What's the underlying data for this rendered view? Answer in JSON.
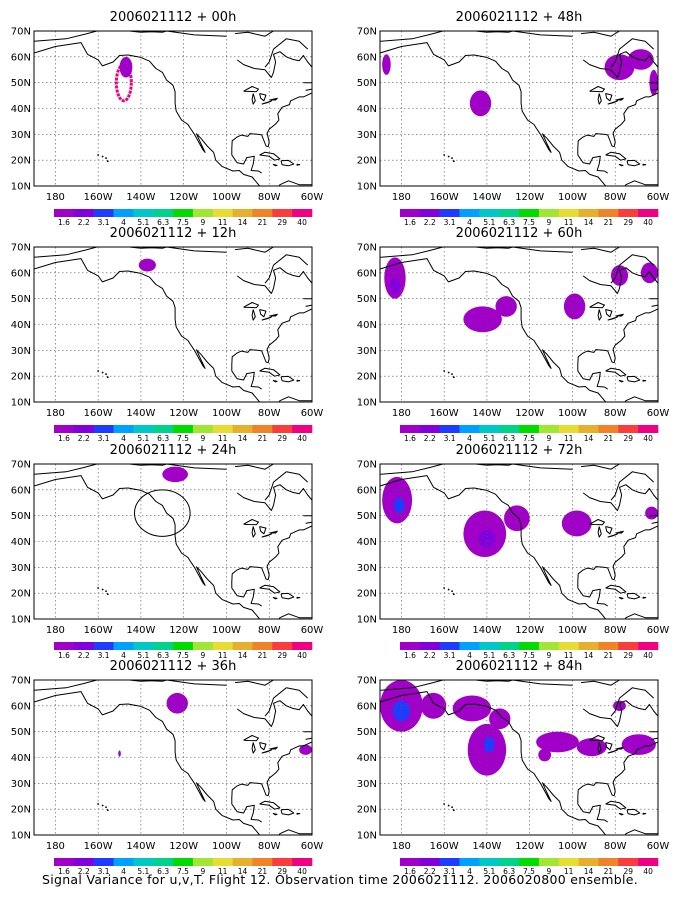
{
  "figure": {
    "caption": "Signal Variance for u,v,T. Flight 12. Observation time 2006021112. 2006020800 ensemble."
  },
  "map": {
    "lat_ticks": [
      "70N",
      "60N",
      "50N",
      "40N",
      "30N",
      "20N",
      "10N"
    ],
    "lon_ticks": [
      "180",
      "160W",
      "140W",
      "120W",
      "100W",
      "80W",
      "60W"
    ],
    "lat_range": [
      10,
      70
    ],
    "lon_range": [
      -190,
      -60
    ],
    "grid": "dotted"
  },
  "colorbar": {
    "labels": [
      "1.6",
      "2.2",
      "3.1",
      "4",
      "5.1",
      "6.3",
      "7.5",
      "9",
      "11",
      "14",
      "21",
      "29",
      "40"
    ],
    "colors": [
      "#a000c8",
      "#8200dc",
      "#1e3cff",
      "#00a0ff",
      "#00c8c8",
      "#00d28c",
      "#00dc00",
      "#a0e632",
      "#e6dc32",
      "#e6af2d",
      "#f08228",
      "#fa3c3c",
      "#f00082"
    ]
  },
  "chart_data": [
    {
      "type": "heatmap",
      "title": "2006021112 + 00h",
      "field": "signal variance",
      "features": [
        {
          "kind": "contour_ring",
          "lon": -148,
          "lat": 50,
          "rx": 3.5,
          "ry": 7,
          "color": "#f00082"
        },
        {
          "kind": "blob",
          "lon": -147,
          "lat": 56,
          "rx": 3,
          "ry": 4,
          "color": "#a000c8"
        }
      ]
    },
    {
      "type": "heatmap",
      "title": "2006021112 + 48h",
      "field": "signal variance",
      "features": [
        {
          "kind": "blob",
          "lon": -187,
          "lat": 57,
          "rx": 2,
          "ry": 4,
          "color": "#a000c8"
        },
        {
          "kind": "blob",
          "lon": -143,
          "lat": 42,
          "rx": 5,
          "ry": 5,
          "color": "#a000c8"
        },
        {
          "kind": "blob",
          "lon": -78,
          "lat": 56,
          "rx": 7,
          "ry": 5,
          "color": "#a000c8"
        },
        {
          "kind": "blob",
          "lon": -68,
          "lat": 59,
          "rx": 6,
          "ry": 4,
          "color": "#a000c8"
        },
        {
          "kind": "blob",
          "lon": -62,
          "lat": 50,
          "rx": 2,
          "ry": 5,
          "color": "#a000c8"
        }
      ]
    },
    {
      "type": "heatmap",
      "title": "2006021112 + 12h",
      "field": "signal variance",
      "features": [
        {
          "kind": "blob",
          "lon": -137,
          "lat": 63,
          "rx": 4,
          "ry": 2.5,
          "color": "#a000c8"
        }
      ]
    },
    {
      "type": "heatmap",
      "title": "2006021112 + 60h",
      "field": "signal variance",
      "features": [
        {
          "kind": "blob",
          "lon": -183,
          "lat": 58,
          "rx": 5,
          "ry": 8,
          "color": "#a000c8"
        },
        {
          "kind": "blob",
          "lon": -183,
          "lat": 55,
          "rx": 2.5,
          "ry": 3,
          "color": "#8200dc"
        },
        {
          "kind": "blob",
          "lon": -142,
          "lat": 42,
          "rx": 9,
          "ry": 5,
          "color": "#a000c8"
        },
        {
          "kind": "blob",
          "lon": -131,
          "lat": 47,
          "rx": 5,
          "ry": 4,
          "color": "#a000c8"
        },
        {
          "kind": "blob",
          "lon": -99,
          "lat": 47,
          "rx": 5,
          "ry": 5,
          "color": "#a000c8"
        },
        {
          "kind": "blob",
          "lon": -78,
          "lat": 59,
          "rx": 4,
          "ry": 4,
          "color": "#a000c8"
        },
        {
          "kind": "blob",
          "lon": -64,
          "lat": 60,
          "rx": 4,
          "ry": 4,
          "color": "#a000c8"
        }
      ]
    },
    {
      "type": "heatmap",
      "title": "2006021112 + 24h",
      "field": "signal variance",
      "circle": {
        "lon": -130,
        "lat": 51,
        "rx": 13,
        "ry": 9
      },
      "features": [
        {
          "kind": "blob",
          "lon": -124,
          "lat": 66,
          "rx": 6,
          "ry": 3,
          "color": "#a000c8"
        }
      ]
    },
    {
      "type": "heatmap",
      "title": "2006021112 + 72h",
      "field": "signal variance",
      "features": [
        {
          "kind": "blob",
          "lon": -182,
          "lat": 56,
          "rx": 7,
          "ry": 9,
          "color": "#a000c8"
        },
        {
          "kind": "blob",
          "lon": -181,
          "lat": 54,
          "rx": 2.5,
          "ry": 3,
          "color": "#1e3cff"
        },
        {
          "kind": "blob",
          "lon": -141,
          "lat": 43,
          "rx": 10,
          "ry": 9,
          "color": "#a000c8"
        },
        {
          "kind": "blob",
          "lon": -140,
          "lat": 41,
          "rx": 4,
          "ry": 3.5,
          "color": "#8200dc"
        },
        {
          "kind": "blob",
          "lon": -126,
          "lat": 49,
          "rx": 6,
          "ry": 5,
          "color": "#a000c8"
        },
        {
          "kind": "blob",
          "lon": -98,
          "lat": 47,
          "rx": 7,
          "ry": 5,
          "color": "#a000c8"
        },
        {
          "kind": "blob",
          "lon": -63,
          "lat": 51,
          "rx": 3,
          "ry": 2.5,
          "color": "#a000c8"
        }
      ]
    },
    {
      "type": "heatmap",
      "title": "2006021112 + 36h",
      "field": "signal variance",
      "features": [
        {
          "kind": "blob",
          "lon": -123,
          "lat": 61,
          "rx": 5,
          "ry": 4,
          "color": "#a000c8"
        },
        {
          "kind": "blob",
          "lon": -150,
          "lat": 41.5,
          "rx": 0.6,
          "ry": 1.2,
          "color": "#a000c8"
        },
        {
          "kind": "blob",
          "lon": -63,
          "lat": 43,
          "rx": 3,
          "ry": 2,
          "color": "#a000c8"
        }
      ]
    },
    {
      "type": "heatmap",
      "title": "2006021112 + 84h",
      "field": "signal variance",
      "features": [
        {
          "kind": "blob",
          "lon": -180,
          "lat": 60,
          "rx": 10,
          "ry": 10,
          "color": "#a000c8"
        },
        {
          "kind": "blob",
          "lon": -180,
          "lat": 58,
          "rx": 4,
          "ry": 4,
          "color": "#1e3cff"
        },
        {
          "kind": "blob",
          "lon": -165,
          "lat": 60,
          "rx": 6,
          "ry": 5,
          "color": "#a000c8"
        },
        {
          "kind": "blob",
          "lon": -147,
          "lat": 59,
          "rx": 9,
          "ry": 5,
          "color": "#a000c8"
        },
        {
          "kind": "blob",
          "lon": -134,
          "lat": 55,
          "rx": 5,
          "ry": 4,
          "color": "#a000c8"
        },
        {
          "kind": "blob",
          "lon": -140,
          "lat": 43,
          "rx": 9,
          "ry": 10,
          "color": "#a000c8"
        },
        {
          "kind": "blob",
          "lon": -139,
          "lat": 45,
          "rx": 2.5,
          "ry": 3,
          "color": "#1e3cff"
        },
        {
          "kind": "blob",
          "lon": -107,
          "lat": 46,
          "rx": 10,
          "ry": 4,
          "color": "#a000c8"
        },
        {
          "kind": "blob",
          "lon": -91,
          "lat": 44,
          "rx": 7,
          "ry": 3.5,
          "color": "#a000c8"
        },
        {
          "kind": "blob",
          "lon": -69,
          "lat": 45,
          "rx": 8,
          "ry": 4,
          "color": "#a000c8"
        },
        {
          "kind": "blob",
          "lon": -113,
          "lat": 41,
          "rx": 3,
          "ry": 2.5,
          "color": "#a000c8"
        },
        {
          "kind": "blob",
          "lon": -78,
          "lat": 60,
          "rx": 3,
          "ry": 2,
          "color": "#a000c8"
        }
      ]
    }
  ]
}
